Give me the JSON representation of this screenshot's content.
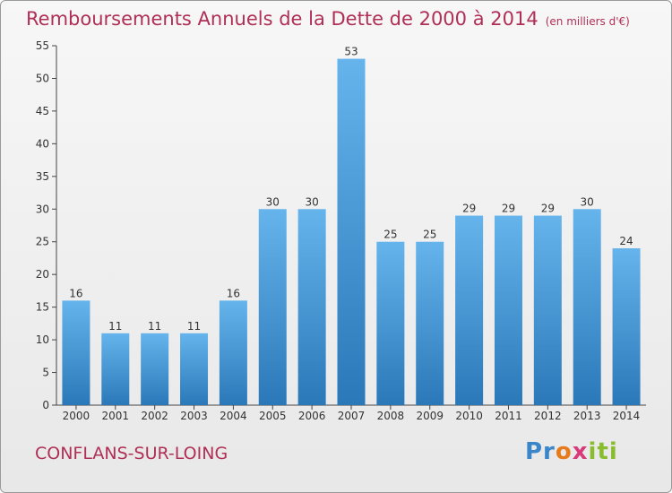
{
  "chart_data": {
    "type": "bar",
    "title": "Remboursements Annuels de la Dette de 2000 à 2014",
    "subtitle": "(en milliers d'€)",
    "categories": [
      "2000",
      "2001",
      "2002",
      "2003",
      "2004",
      "2005",
      "2006",
      "2007",
      "2008",
      "2009",
      "2010",
      "2011",
      "2012",
      "2013",
      "2014"
    ],
    "values": [
      16,
      11,
      11,
      11,
      16,
      30,
      30,
      53,
      25,
      25,
      29,
      29,
      29,
      30,
      24
    ],
    "ylim": [
      0,
      55
    ],
    "yticks": [
      0,
      5,
      10,
      15,
      20,
      25,
      30,
      35,
      40,
      45,
      50,
      55
    ],
    "grid": false,
    "xlabel": "",
    "ylabel": "",
    "colors": {
      "bar_light": "#66b4ec",
      "bar_dark": "#2a78b8",
      "title": "#b02f56"
    }
  },
  "footer": {
    "city": "CONFLANS-SUR-LOING",
    "logo": "Proxiti"
  }
}
